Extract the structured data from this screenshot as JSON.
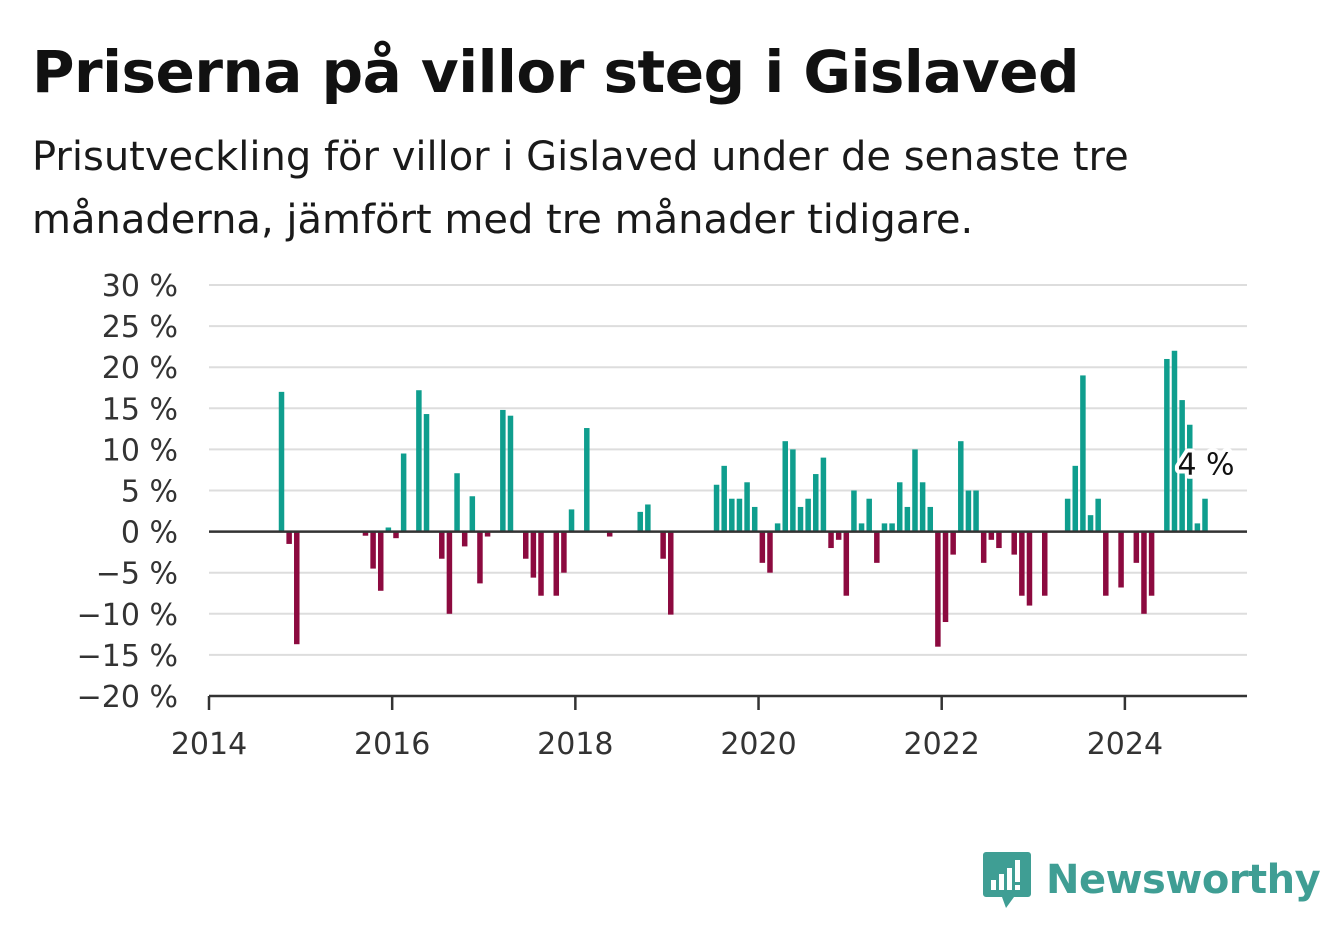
{
  "header": {
    "title": "Priserna på villor steg i Gislaved",
    "subtitle": "Prisutveckling för villor i Gislaved under de senaste tre månaderna, jämfört med tre månader tidigare."
  },
  "brand": {
    "name": "Newsworthy",
    "color": "#3f9e94",
    "icon": "bar-chart-speech-bubble-icon"
  },
  "colors": {
    "positive": "#0f9e8e",
    "negative": "#8c0a3f",
    "grid": "#dddddd",
    "zero_line": "#333333"
  },
  "chart_data": {
    "type": "bar",
    "ylim": [
      -20,
      30
    ],
    "y_ticks": [
      30,
      25,
      20,
      15,
      10,
      5,
      0,
      -5,
      -10,
      -15,
      -20
    ],
    "y_tick_labels": [
      "30 %",
      "25 %",
      "20 %",
      "15 %",
      "10 %",
      "5 %",
      "0 %",
      "−5 %",
      "−10 %",
      "−15 %",
      "−20 %"
    ],
    "x_range": [
      "2014-01",
      "2025-05"
    ],
    "x_ticks": [
      "2014-01",
      "2016-01",
      "2018-01",
      "2020-01",
      "2022-01",
      "2024-01"
    ],
    "x_tick_labels": [
      "2014",
      "2016",
      "2018",
      "2020",
      "2022",
      "2024"
    ],
    "grid": true,
    "legend": "none",
    "annotation": {
      "date": "2024-11",
      "value": 4,
      "label": "4 %"
    },
    "series": [
      {
        "data": [
          {
            "date": "2014-10",
            "value": 17.0
          },
          {
            "date": "2014-11",
            "value": -1.5
          },
          {
            "date": "2014-12",
            "value": -13.7
          },
          {
            "date": "2015-09",
            "value": -0.5
          },
          {
            "date": "2015-10",
            "value": -4.5
          },
          {
            "date": "2015-11",
            "value": -7.2
          },
          {
            "date": "2015-12",
            "value": 0.5
          },
          {
            "date": "2016-01",
            "value": -0.8
          },
          {
            "date": "2016-02",
            "value": 9.5
          },
          {
            "date": "2016-04",
            "value": 17.2
          },
          {
            "date": "2016-05",
            "value": 14.3
          },
          {
            "date": "2016-07",
            "value": -3.3
          },
          {
            "date": "2016-08",
            "value": -10.0
          },
          {
            "date": "2016-09",
            "value": 7.1
          },
          {
            "date": "2016-10",
            "value": -1.8
          },
          {
            "date": "2016-11",
            "value": 4.3
          },
          {
            "date": "2016-12",
            "value": -6.3
          },
          {
            "date": "2017-01",
            "value": -0.6
          },
          {
            "date": "2017-03",
            "value": 14.8
          },
          {
            "date": "2017-04",
            "value": 14.1
          },
          {
            "date": "2017-06",
            "value": -3.3
          },
          {
            "date": "2017-07",
            "value": -5.6
          },
          {
            "date": "2017-08",
            "value": -7.8
          },
          {
            "date": "2017-10",
            "value": -7.8
          },
          {
            "date": "2017-11",
            "value": -5.0
          },
          {
            "date": "2017-12",
            "value": 2.7
          },
          {
            "date": "2018-02",
            "value": 12.6
          },
          {
            "date": "2018-05",
            "value": -0.6
          },
          {
            "date": "2018-09",
            "value": 2.4
          },
          {
            "date": "2018-10",
            "value": 3.3
          },
          {
            "date": "2018-12",
            "value": -3.3
          },
          {
            "date": "2019-01",
            "value": -10.1
          },
          {
            "date": "2019-07",
            "value": 5.7
          },
          {
            "date": "2019-08",
            "value": 8.0
          },
          {
            "date": "2019-09",
            "value": 4.0
          },
          {
            "date": "2019-10",
            "value": 4.0
          },
          {
            "date": "2019-11",
            "value": 6.0
          },
          {
            "date": "2019-12",
            "value": 3.0
          },
          {
            "date": "2020-01",
            "value": -3.8
          },
          {
            "date": "2020-02",
            "value": -5.0
          },
          {
            "date": "2020-03",
            "value": 1.0
          },
          {
            "date": "2020-04",
            "value": 11.0
          },
          {
            "date": "2020-05",
            "value": 10.0
          },
          {
            "date": "2020-06",
            "value": 3.0
          },
          {
            "date": "2020-07",
            "value": 4.0
          },
          {
            "date": "2020-08",
            "value": 7.0
          },
          {
            "date": "2020-09",
            "value": 9.0
          },
          {
            "date": "2020-10",
            "value": -2.0
          },
          {
            "date": "2020-11",
            "value": -1.0
          },
          {
            "date": "2020-12",
            "value": -7.8
          },
          {
            "date": "2021-01",
            "value": 5.0
          },
          {
            "date": "2021-02",
            "value": 1.0
          },
          {
            "date": "2021-03",
            "value": 4.0
          },
          {
            "date": "2021-04",
            "value": -3.8
          },
          {
            "date": "2021-05",
            "value": 1.0
          },
          {
            "date": "2021-06",
            "value": 1.0
          },
          {
            "date": "2021-07",
            "value": 6.0
          },
          {
            "date": "2021-08",
            "value": 3.0
          },
          {
            "date": "2021-09",
            "value": 10.0
          },
          {
            "date": "2021-10",
            "value": 6.0
          },
          {
            "date": "2021-11",
            "value": 3.0
          },
          {
            "date": "2021-12",
            "value": -14.0
          },
          {
            "date": "2022-01",
            "value": -11.0
          },
          {
            "date": "2022-02",
            "value": -2.8
          },
          {
            "date": "2022-03",
            "value": 11.0
          },
          {
            "date": "2022-04",
            "value": 5.0
          },
          {
            "date": "2022-05",
            "value": 5.0
          },
          {
            "date": "2022-06",
            "value": -3.8
          },
          {
            "date": "2022-07",
            "value": -1.0
          },
          {
            "date": "2022-08",
            "value": -2.0
          },
          {
            "date": "2022-10",
            "value": -2.8
          },
          {
            "date": "2022-11",
            "value": -7.8
          },
          {
            "date": "2022-12",
            "value": -9.0
          },
          {
            "date": "2023-02",
            "value": -7.8
          },
          {
            "date": "2023-05",
            "value": 4.0
          },
          {
            "date": "2023-06",
            "value": 8.0
          },
          {
            "date": "2023-07",
            "value": 19.0
          },
          {
            "date": "2023-08",
            "value": 2.0
          },
          {
            "date": "2023-09",
            "value": 4.0
          },
          {
            "date": "2023-10",
            "value": -7.8
          },
          {
            "date": "2023-12",
            "value": -6.8
          },
          {
            "date": "2024-02",
            "value": -3.8
          },
          {
            "date": "2024-03",
            "value": -10.0
          },
          {
            "date": "2024-04",
            "value": -7.8
          },
          {
            "date": "2024-06",
            "value": 21.0
          },
          {
            "date": "2024-07",
            "value": 22.0
          },
          {
            "date": "2024-08",
            "value": 16.0
          },
          {
            "date": "2024-09",
            "value": 13.0
          },
          {
            "date": "2024-10",
            "value": 1.0
          },
          {
            "date": "2024-11",
            "value": 4.0
          }
        ]
      }
    ]
  }
}
